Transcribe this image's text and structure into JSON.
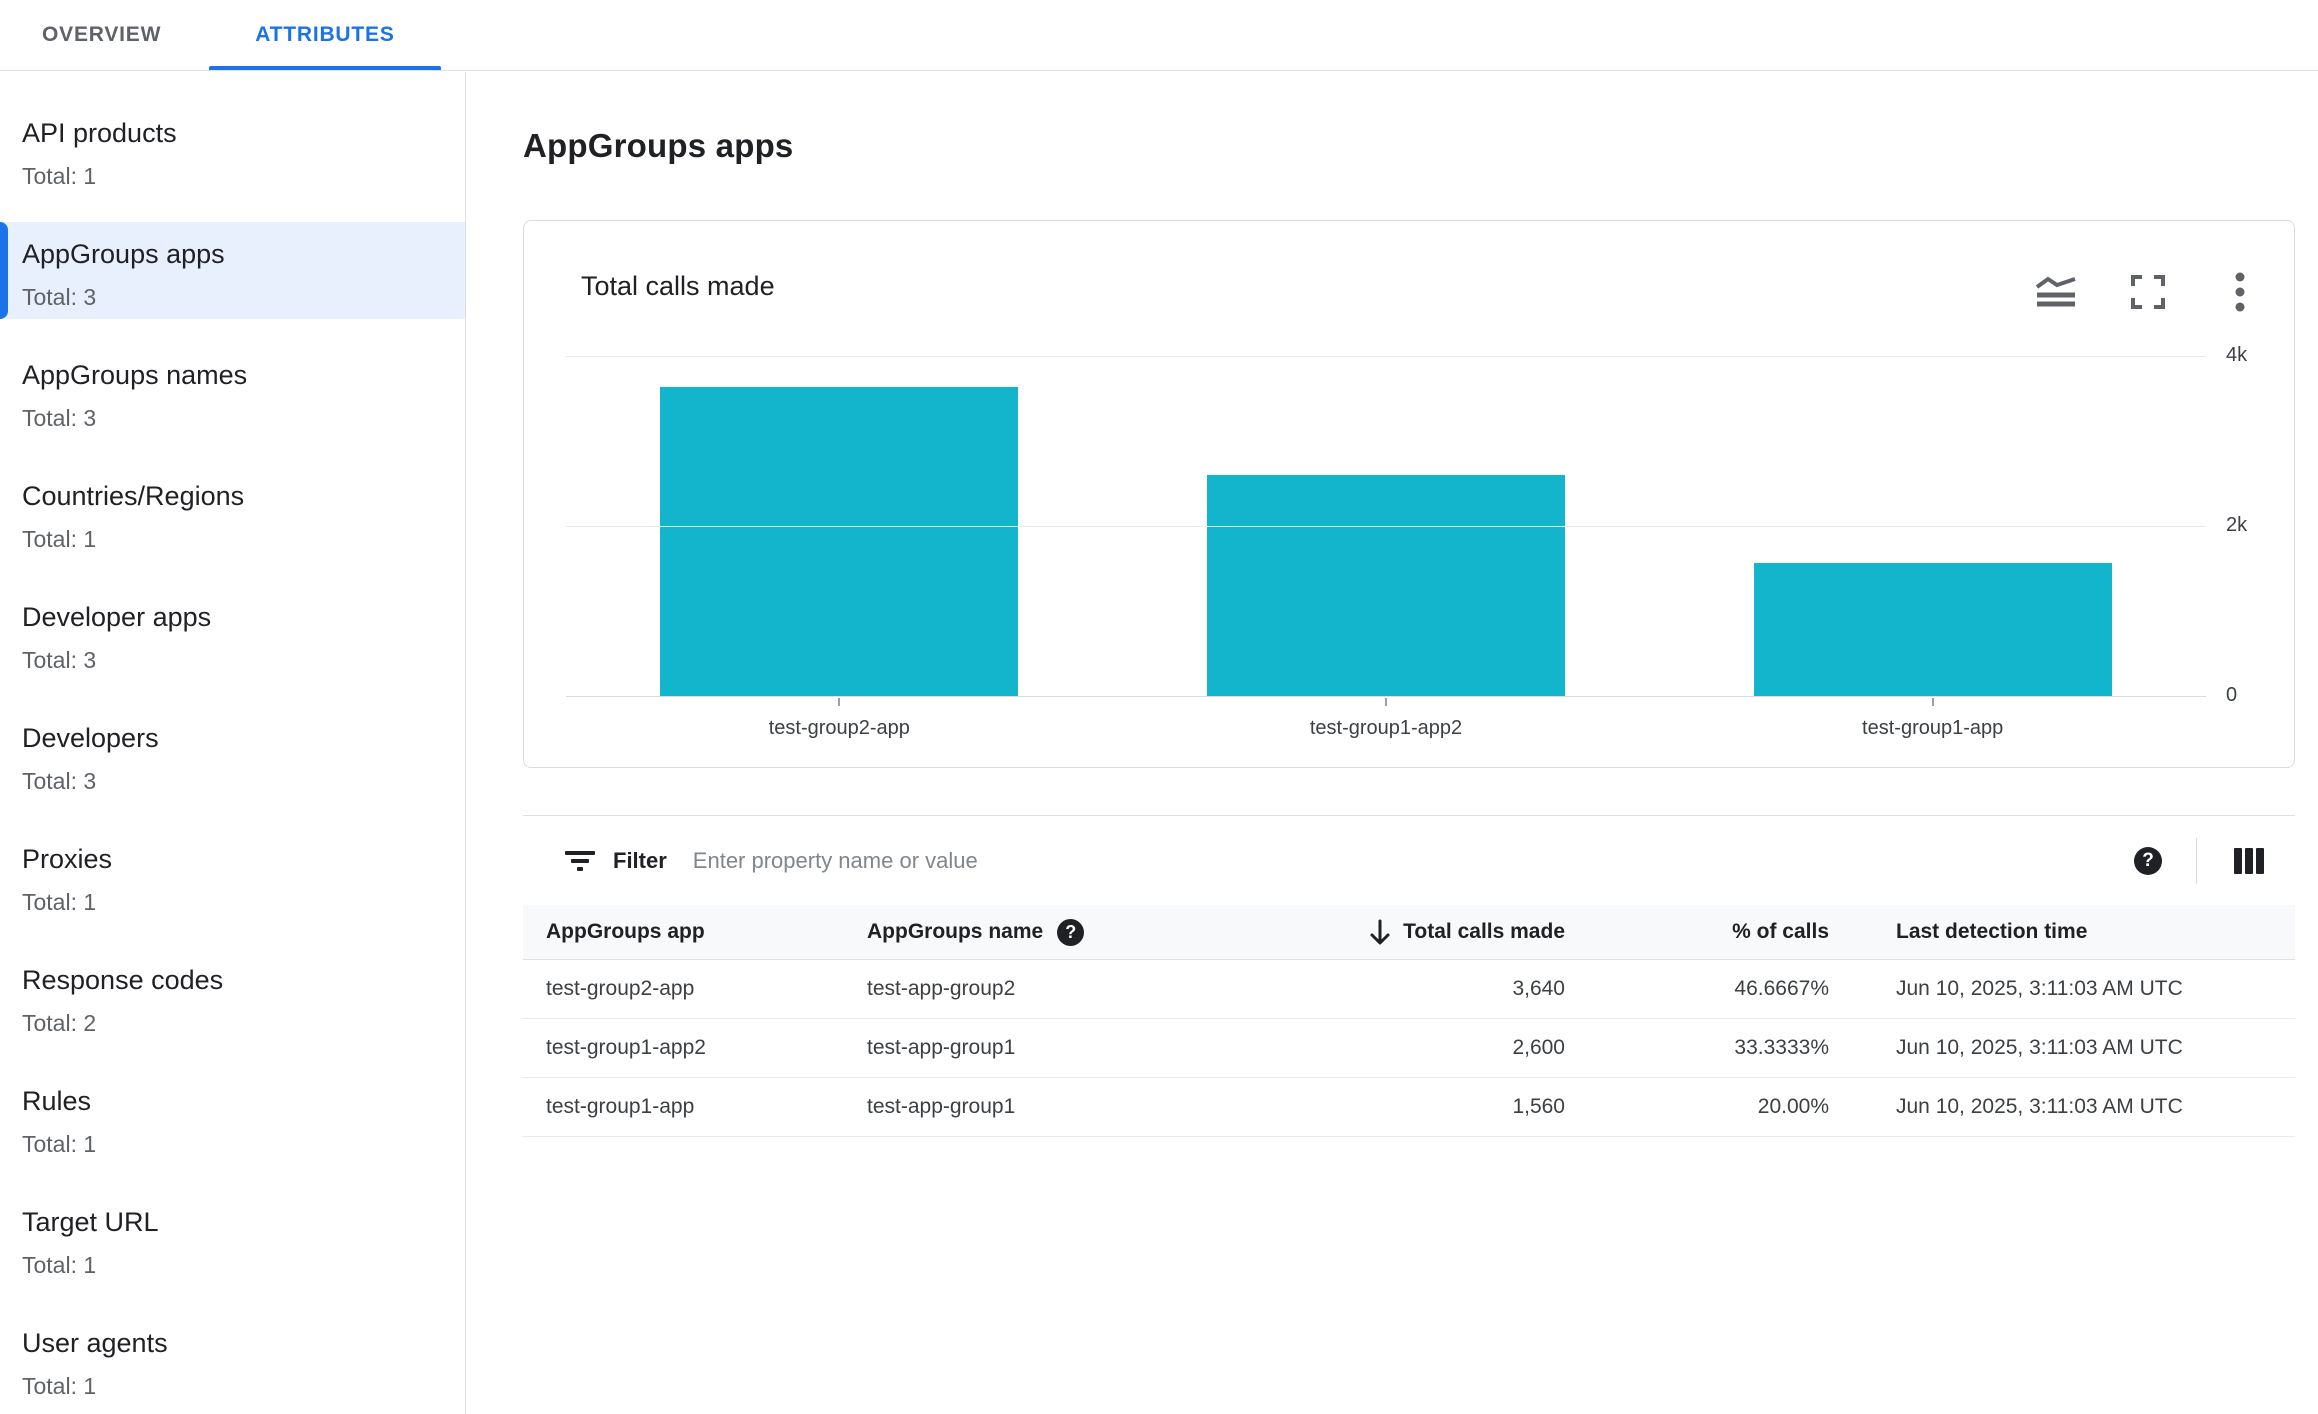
{
  "tabs": [
    {
      "label": "OVERVIEW",
      "active": false
    },
    {
      "label": "ATTRIBUTES",
      "active": true
    }
  ],
  "sidebar": {
    "items": [
      {
        "label": "API products",
        "total": "Total: 1",
        "selected": false
      },
      {
        "label": "AppGroups apps",
        "total": "Total: 3",
        "selected": true
      },
      {
        "label": "AppGroups names",
        "total": "Total: 3",
        "selected": false
      },
      {
        "label": "Countries/Regions",
        "total": "Total: 1",
        "selected": false
      },
      {
        "label": "Developer apps",
        "total": "Total: 3",
        "selected": false
      },
      {
        "label": "Developers",
        "total": "Total: 3",
        "selected": false
      },
      {
        "label": "Proxies",
        "total": "Total: 1",
        "selected": false
      },
      {
        "label": "Response codes",
        "total": "Total: 2",
        "selected": false
      },
      {
        "label": "Rules",
        "total": "Total: 1",
        "selected": false
      },
      {
        "label": "Target URL",
        "total": "Total: 1",
        "selected": false
      },
      {
        "label": "User agents",
        "total": "Total: 1",
        "selected": false
      }
    ]
  },
  "main": {
    "title": "AppGroups apps"
  },
  "chart_card": {
    "title": "Total calls made",
    "icons": [
      "chart-type",
      "fullscreen",
      "more-options"
    ],
    "chart_data": {
      "type": "bar",
      "categories": [
        "test-group2-app",
        "test-group1-app2",
        "test-group1-app"
      ],
      "values": [
        3640,
        2600,
        1560
      ],
      "title": "Total calls made",
      "xlabel": "",
      "ylabel": "",
      "ylim": [
        0,
        4000
      ],
      "yticks": [
        {
          "label": "4k",
          "value": 4000
        },
        {
          "label": "2k",
          "value": 2000
        },
        {
          "label": "0",
          "value": 0
        }
      ],
      "bar_color": "#12b5cb",
      "grid": "horizontal",
      "y_axis_side": "right",
      "legend": "none"
    }
  },
  "filter": {
    "label": "Filter",
    "placeholder": "Enter property name or value"
  },
  "icons": {
    "help_glyph": "?"
  },
  "table": {
    "columns": [
      {
        "label": "AppGroups app",
        "align": "left"
      },
      {
        "label": "AppGroups name",
        "align": "left",
        "help": true
      },
      {
        "label": "Total calls made",
        "align": "right",
        "sorted": "desc"
      },
      {
        "label": "% of calls",
        "align": "right"
      },
      {
        "label": "Last detection time",
        "align": "left"
      }
    ],
    "rows": [
      [
        "test-group2-app",
        "test-app-group2",
        "3,640",
        "46.6667%",
        "Jun 10, 2025, 3:11:03 AM UTC"
      ],
      [
        "test-group1-app2",
        "test-app-group1",
        "2,600",
        "33.3333%",
        "Jun 10, 2025, 3:11:03 AM UTC"
      ],
      [
        "test-group1-app",
        "test-app-group1",
        "1,560",
        "20.00%",
        "Jun 10, 2025, 3:11:03 AM UTC"
      ]
    ]
  },
  "colors": {
    "accent": "#1a73e8",
    "selected_bg": "#e8f0fe",
    "bar": "#12b5cb",
    "text": "#202124",
    "muted": "#5f6368",
    "border": "#dadce0",
    "grid": "#e9eaed",
    "header_bg": "#f8f9fa"
  }
}
